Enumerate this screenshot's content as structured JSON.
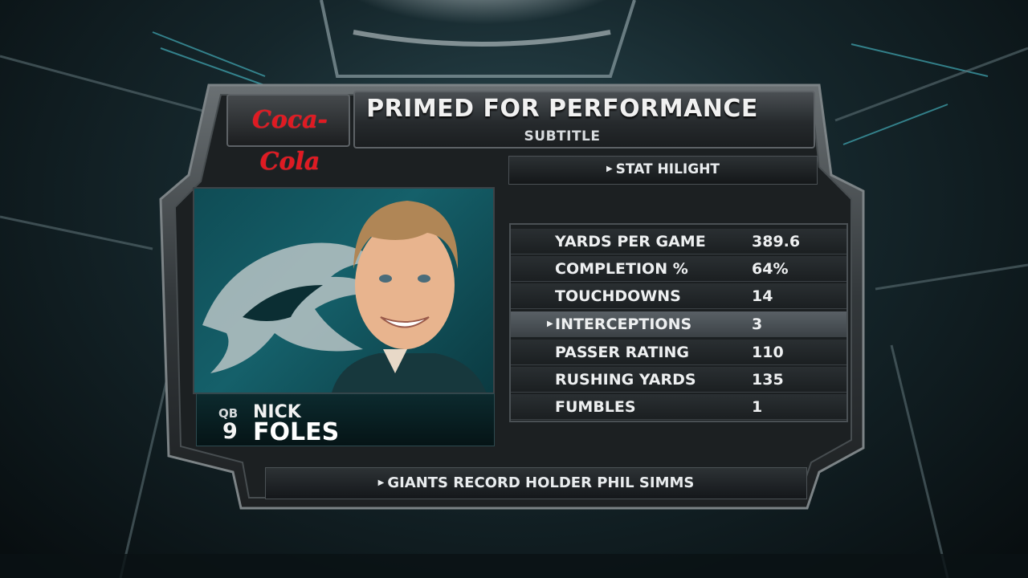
{
  "graphic": {
    "title": "PRIMED FOR PERFORMANCE",
    "subtitle": "SUBTITLE",
    "sponsor_logo_text": "Coca-Cola",
    "section_label": "STAT HILIGHT",
    "footer_label": "GIANTS RECORD HOLDER PHIL SIMMS"
  },
  "player": {
    "position": "QB",
    "number": "9",
    "first_name": "NICK",
    "last_name": "FOLES",
    "team_logo_icon": "eagles-logo-icon",
    "photo_icon": "player-headshot-icon"
  },
  "stats": [
    {
      "label": "YARDS PER GAME",
      "value": "389.6",
      "highlighted": false
    },
    {
      "label": "COMPLETION %",
      "value": "64%",
      "highlighted": false
    },
    {
      "label": "TOUCHDOWNS",
      "value": "14",
      "highlighted": false
    },
    {
      "label": "INTERCEPTIONS",
      "value": "3",
      "highlighted": true
    },
    {
      "label": "PASSER RATING",
      "value": "110",
      "highlighted": false
    },
    {
      "label": "RUSHING YARDS",
      "value": "135",
      "highlighted": false
    },
    {
      "label": "FUMBLES",
      "value": "1",
      "highlighted": false
    }
  ],
  "colors": {
    "accent_teal": "#1a6f79",
    "coke_red": "#e01a22",
    "highlight_row": "#596066"
  }
}
